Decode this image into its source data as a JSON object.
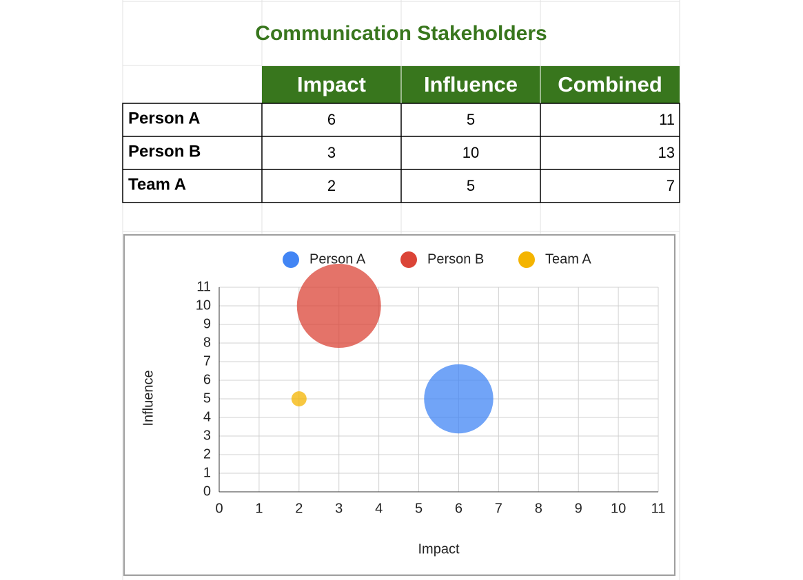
{
  "title": "Communication Stakeholders",
  "table": {
    "columns": [
      "Impact",
      "Influence",
      "Combined"
    ],
    "rows": [
      [
        "Person A",
        6,
        5,
        11
      ],
      [
        "Person B",
        3,
        10,
        13
      ],
      [
        "Team A",
        2,
        5,
        7
      ]
    ]
  },
  "chart_data": {
    "type": "bubble",
    "xlabel": "Impact",
    "ylabel": "Influence",
    "legend": "top",
    "grid": true,
    "xlim": [
      0,
      11
    ],
    "xticks": [
      0,
      1,
      2,
      3,
      4,
      5,
      6,
      7,
      8,
      9,
      10,
      11
    ],
    "ylim": [
      0,
      11
    ],
    "yticks": [
      0,
      1,
      2,
      3,
      4,
      5,
      6,
      7,
      8,
      9,
      10,
      11
    ],
    "series": [
      {
        "name": "Person A",
        "color": "#4285f4",
        "x": [
          6
        ],
        "values": [
          5
        ],
        "sizes": [
          11
        ]
      },
      {
        "name": "Person B",
        "color": "#db4437",
        "x": [
          3
        ],
        "values": [
          10
        ],
        "sizes": [
          13
        ]
      },
      {
        "name": "Team A",
        "color": "#f4b400",
        "x": [
          2
        ],
        "values": [
          5
        ],
        "sizes": [
          7
        ]
      }
    ]
  }
}
